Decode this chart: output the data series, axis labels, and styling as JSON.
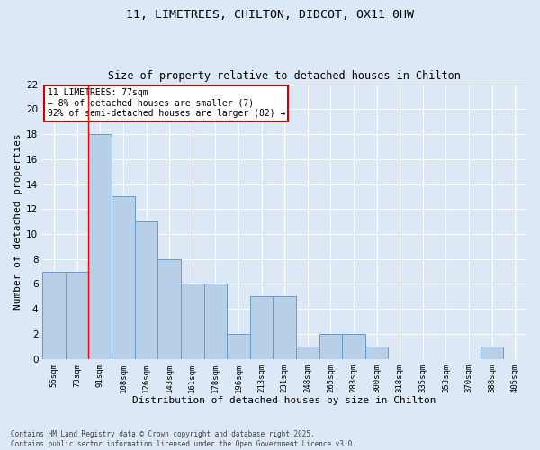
{
  "title1": "11, LIMETREES, CHILTON, DIDCOT, OX11 0HW",
  "title2": "Size of property relative to detached houses in Chilton",
  "xlabel": "Distribution of detached houses by size in Chilton",
  "ylabel": "Number of detached properties",
  "categories": [
    "56sqm",
    "73sqm",
    "91sqm",
    "108sqm",
    "126sqm",
    "143sqm",
    "161sqm",
    "178sqm",
    "196sqm",
    "213sqm",
    "231sqm",
    "248sqm",
    "265sqm",
    "283sqm",
    "300sqm",
    "318sqm",
    "335sqm",
    "353sqm",
    "370sqm",
    "388sqm",
    "405sqm"
  ],
  "values": [
    7,
    7,
    18,
    13,
    11,
    8,
    6,
    6,
    2,
    5,
    5,
    1,
    2,
    2,
    1,
    0,
    0,
    0,
    0,
    1,
    0
  ],
  "bar_color": "#b8cfe8",
  "bar_edge_color": "#6699cc",
  "background_color": "#dce8f5",
  "grid_color": "#ffffff",
  "red_line_x": 1.5,
  "annotation_text": "11 LIMETREES: 77sqm\n← 8% of detached houses are smaller (7)\n92% of semi-detached houses are larger (82) →",
  "annotation_box_color": "#ffffff",
  "annotation_box_edge": "#cc0000",
  "ylim": [
    0,
    22
  ],
  "yticks": [
    0,
    2,
    4,
    6,
    8,
    10,
    12,
    14,
    16,
    18,
    20,
    22
  ],
  "footer": "Contains HM Land Registry data © Crown copyright and database right 2025.\nContains public sector information licensed under the Open Government Licence v3.0."
}
